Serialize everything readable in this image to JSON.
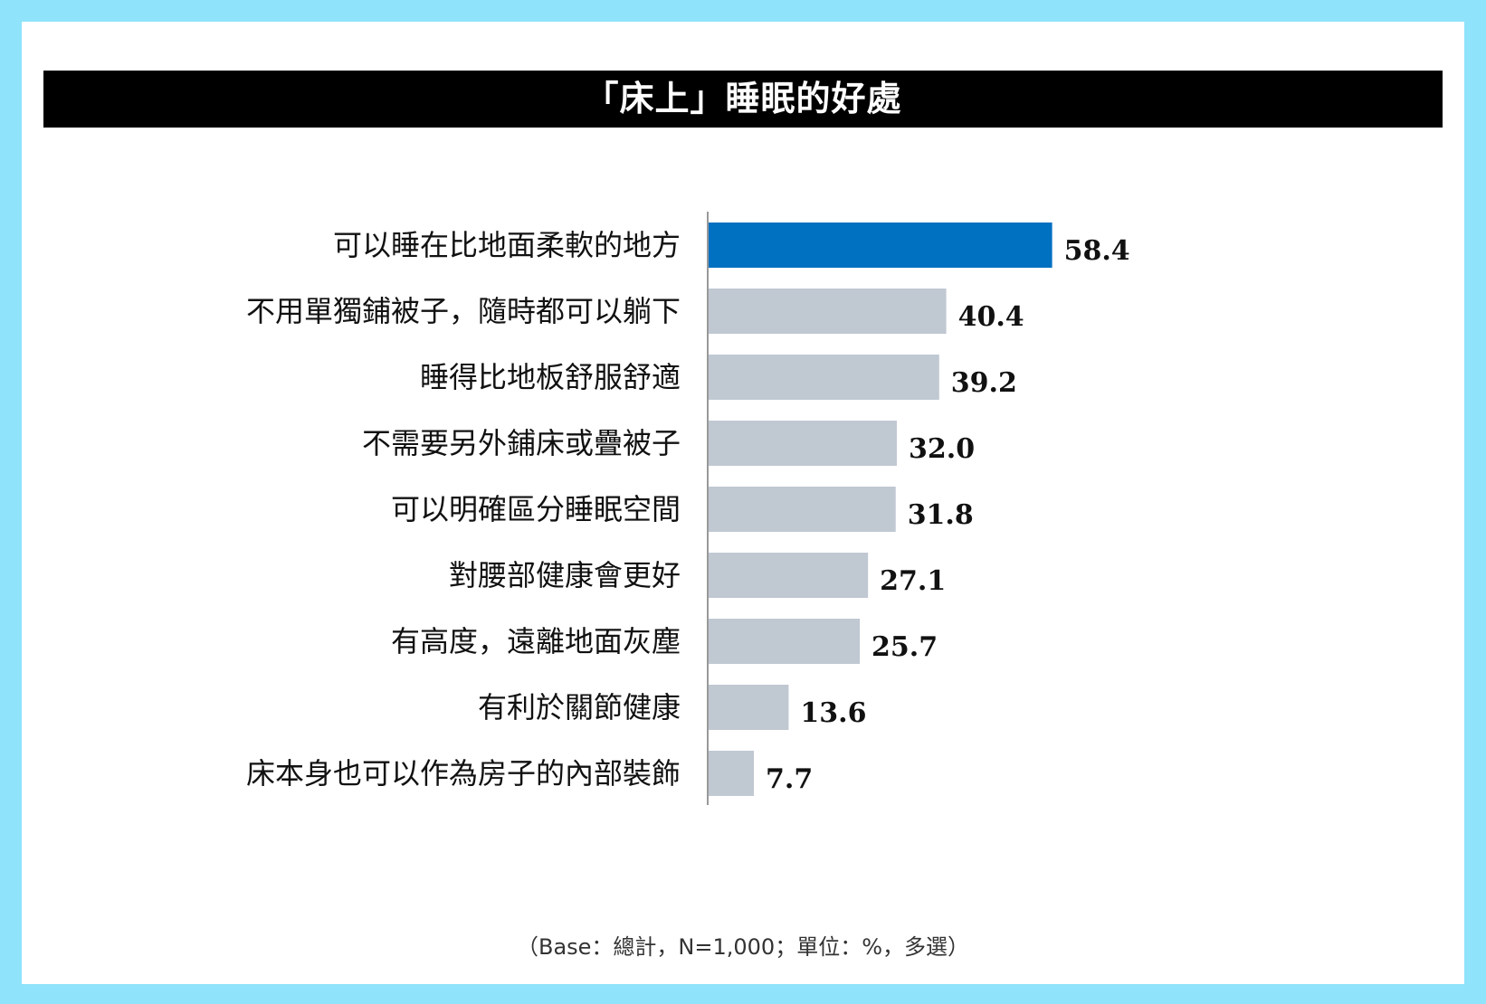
{
  "title": "「床上」睡眠的好處",
  "footnote": "（Base：總計，N=1,000；單位：%，多選）",
  "colors": {
    "highlight": "#0070c0",
    "bar": "#c0c8d2",
    "title_bg": "#000000",
    "border": "#8fe3fb"
  },
  "chart_data": {
    "type": "bar",
    "orientation": "horizontal",
    "title": "「床上」睡眠的好處",
    "categories": [
      "可以睡在比地面柔軟的地方",
      "不用單獨鋪被子，隨時都可以躺下",
      "睡得比地板舒服舒適",
      "不需要另外鋪床或疊被子",
      "可以明確區分睡眠空間",
      "對腰部健康會更好",
      "有高度，遠離地面灰塵",
      "有利於關節健康",
      "床本身也可以作為房子的內部裝飾"
    ],
    "values": [
      58.4,
      40.4,
      39.2,
      32.0,
      31.8,
      27.1,
      25.7,
      13.6,
      7.7
    ],
    "value_labels": [
      "58.4",
      "40.4",
      "39.2",
      "32.0",
      "31.8",
      "27.1",
      "25.7",
      "13.6",
      "7.7"
    ],
    "highlight_index": 0,
    "xlabel": "",
    "ylabel": "",
    "grid": false
  }
}
